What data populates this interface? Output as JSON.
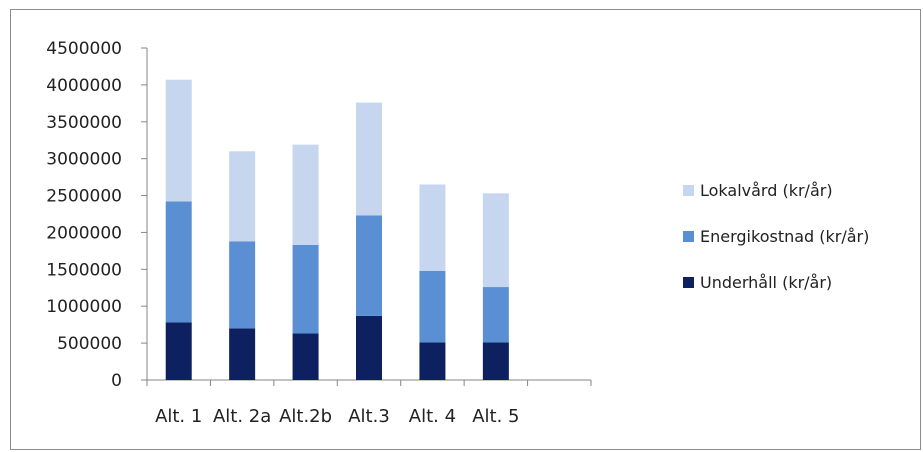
{
  "chart_data": {
    "type": "bar",
    "stacked": true,
    "title": "",
    "xlabel": "",
    "ylabel": "",
    "categories": [
      "Alt. 1",
      "Alt. 2a",
      "Alt.2b",
      "Alt.3",
      "Alt. 4",
      "Alt. 5"
    ],
    "series": [
      {
        "name": "Underhåll (kr/år)",
        "color": "#0d2060",
        "values": [
          780000,
          700000,
          630000,
          870000,
          510000,
          510000
        ]
      },
      {
        "name": "Energikostnad (kr/år)",
        "color": "#5b8fd3",
        "values": [
          1640000,
          1180000,
          1200000,
          1360000,
          970000,
          750000
        ]
      },
      {
        "name": "Lokalvård (kr/år)",
        "color": "#c5d6ee",
        "values": [
          1650000,
          1220000,
          1360000,
          1530000,
          1170000,
          1270000
        ]
      }
    ],
    "ylim": [
      0,
      4500000
    ],
    "yticks": [
      "0",
      "500000",
      "1000000",
      "1500000",
      "2000000",
      "2500000",
      "3000000",
      "3500000",
      "4000000",
      "4500000"
    ],
    "grid": false,
    "legend_position": "right",
    "legend_order": [
      "Lokalvård (kr/år)",
      "Energikostnad (kr/år)",
      "Underhåll (kr/år)"
    ]
  }
}
